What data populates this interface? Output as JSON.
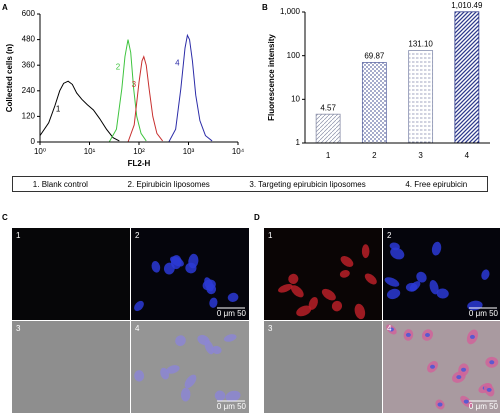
{
  "chart_data": [
    {
      "type": "line",
      "panel_label": "A",
      "xlabel": "FL2-H",
      "ylabel": "Collected cells (n)",
      "xscale": "log",
      "xlim": [
        1,
        10000
      ],
      "xticks": [
        {
          "value": 1,
          "label": "10⁰"
        },
        {
          "value": 10,
          "label": "10¹"
        },
        {
          "value": 100,
          "label": "10²"
        },
        {
          "value": 1000,
          "label": "10³"
        },
        {
          "value": 10000,
          "label": "10⁴"
        }
      ],
      "ylim": [
        0,
        600
      ],
      "yticks": [
        0,
        120,
        240,
        360,
        480,
        600
      ],
      "series": [
        {
          "name": "1",
          "color": "#000000",
          "x": [
            1,
            1.5,
            2,
            2.5,
            3,
            3.7,
            4.5,
            5.5,
            7,
            9,
            12,
            16,
            22,
            30,
            40
          ],
          "values": [
            30,
            90,
            170,
            240,
            275,
            285,
            270,
            230,
            200,
            175,
            150,
            110,
            60,
            20,
            5
          ]
        },
        {
          "name": "2",
          "color": "#3fc43f",
          "x": [
            25,
            35,
            45,
            52,
            60,
            68,
            78,
            90,
            110,
            140
          ],
          "values": [
            0,
            60,
            250,
            400,
            480,
            420,
            250,
            120,
            40,
            5
          ]
        },
        {
          "name": "3",
          "color": "#c8302f",
          "x": [
            60,
            80,
            100,
            115,
            125,
            140,
            160,
            190,
            230,
            300
          ],
          "values": [
            0,
            80,
            280,
            380,
            400,
            360,
            250,
            120,
            40,
            5
          ]
        },
        {
          "name": "4",
          "color": "#2c2ca8",
          "x": [
            400,
            550,
            700,
            850,
            950,
            1050,
            1200,
            1400,
            1700,
            2200,
            3000
          ],
          "values": [
            0,
            60,
            250,
            440,
            500,
            480,
            380,
            220,
            100,
            30,
            5
          ]
        }
      ]
    },
    {
      "type": "bar",
      "panel_label": "B",
      "ylabel": "Fluorescence intensity",
      "yscale": "log",
      "categories": [
        "1",
        "2",
        "3",
        "4"
      ],
      "values": [
        4.57,
        69.87,
        131.1,
        1010.49
      ],
      "value_labels": [
        "4.57",
        "69.87",
        "131.10",
        "1,010.49"
      ],
      "colors": [
        "#8a8fa8",
        "#6670a8",
        "#8890b0",
        "#2e3a8c"
      ],
      "ylim": [
        1,
        1000
      ],
      "yticks": [
        1,
        10,
        100,
        {
          "value": 1000,
          "label": "1,000"
        }
      ]
    }
  ],
  "legend": {
    "items": [
      "1. Blank control",
      "2. Epirubicin liposomes",
      "3. Targeting epirubicin liposomes",
      "4. Free epirubicin"
    ]
  },
  "image_panels": [
    {
      "label": "C",
      "tiles": [
        {
          "label": "1"
        },
        {
          "label": "2",
          "scale": "0 μm 50"
        },
        {
          "label": "3"
        },
        {
          "label": "4",
          "scale": "0 μm 50"
        }
      ]
    },
    {
      "label": "D",
      "tiles": [
        {
          "label": "1"
        },
        {
          "label": "2",
          "scale": "0 μm 50"
        },
        {
          "label": "3"
        },
        {
          "label": "4",
          "scale": "0 μm 50"
        }
      ]
    }
  ]
}
